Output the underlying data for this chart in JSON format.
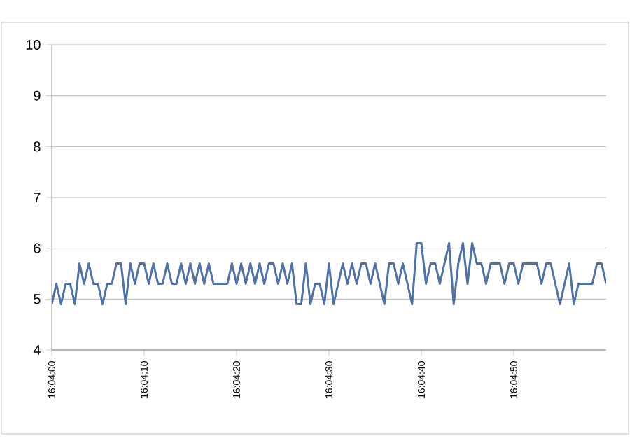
{
  "chart_data": {
    "type": "line",
    "categories": [
      "16:04:00",
      null,
      null,
      null,
      null,
      null,
      null,
      null,
      null,
      null,
      null,
      null,
      null,
      null,
      null,
      null,
      null,
      null,
      null,
      null,
      "16:04:10",
      null,
      null,
      null,
      null,
      null,
      null,
      null,
      null,
      null,
      null,
      null,
      null,
      null,
      null,
      null,
      null,
      null,
      null,
      null,
      "16:04:20",
      null,
      null,
      null,
      null,
      null,
      null,
      null,
      null,
      null,
      null,
      null,
      null,
      null,
      null,
      null,
      null,
      null,
      null,
      null,
      "16:04:30",
      null,
      null,
      null,
      null,
      null,
      null,
      null,
      null,
      null,
      null,
      null,
      null,
      null,
      null,
      null,
      null,
      null,
      null,
      null,
      "16:04:40",
      null,
      null,
      null,
      null,
      null,
      null,
      null,
      null,
      null,
      null,
      null,
      null,
      null,
      null,
      null,
      null,
      null,
      null,
      null,
      "16:04:50",
      null,
      null,
      null,
      null,
      null,
      null,
      null,
      null,
      null,
      null,
      null,
      null,
      null,
      null,
      null,
      null,
      null,
      null,
      null,
      null
    ],
    "series": [
      {
        "color": "#4f72a8",
        "values": [
          4.9,
          5.3,
          4.9,
          5.3,
          5.3,
          4.9,
          5.7,
          5.3,
          5.7,
          5.3,
          5.3,
          4.9,
          5.3,
          5.3,
          5.7,
          5.7,
          4.9,
          5.7,
          5.3,
          5.7,
          5.7,
          5.3,
          5.7,
          5.3,
          5.3,
          5.7,
          5.3,
          5.3,
          5.7,
          5.3,
          5.7,
          5.3,
          5.7,
          5.3,
          5.7,
          5.3,
          5.3,
          5.3,
          5.3,
          5.7,
          5.3,
          5.7,
          5.3,
          5.7,
          5.3,
          5.7,
          5.3,
          5.7,
          5.7,
          5.3,
          5.7,
          5.3,
          5.7,
          4.9,
          4.9,
          5.7,
          4.9,
          5.3,
          5.3,
          4.9,
          5.7,
          4.9,
          5.3,
          5.7,
          5.3,
          5.7,
          5.3,
          5.7,
          5.7,
          5.3,
          5.7,
          5.3,
          4.9,
          5.7,
          5.7,
          5.3,
          5.7,
          5.3,
          4.9,
          6.1,
          6.1,
          5.3,
          5.7,
          5.7,
          5.3,
          5.7,
          6.1,
          4.9,
          5.7,
          6.1,
          5.3,
          6.1,
          5.7,
          5.7,
          5.3,
          5.7,
          5.7,
          5.7,
          5.3,
          5.7,
          5.7,
          5.3,
          5.7,
          5.7,
          5.7,
          5.7,
          5.3,
          5.7,
          5.7,
          5.3,
          4.9,
          5.3,
          5.7,
          4.9,
          5.3,
          5.3,
          5.3,
          5.3,
          5.7,
          5.7,
          5.3
        ]
      }
    ],
    "ylim": [
      4,
      10
    ],
    "yticks": [
      4,
      5,
      6,
      7,
      8,
      9,
      10
    ],
    "grid": "y",
    "marker": "none",
    "line_style": "solid"
  }
}
